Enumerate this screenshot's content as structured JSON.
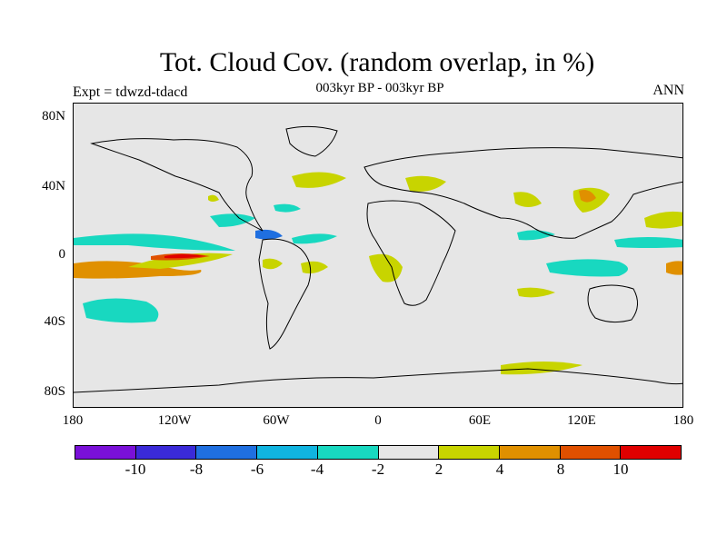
{
  "title": "Tot. Cloud Cov. (random overlap, in %)",
  "subtitle": "003kyr BP - 003kyr BP",
  "left_label": "Expt = tdwzd-tdacd",
  "right_label": "ANN",
  "y_ticks": [
    "80N",
    "40N",
    "0",
    "40S",
    "80S"
  ],
  "x_ticks": [
    "180",
    "120W",
    "60W",
    "0",
    "60E",
    "120E",
    "180"
  ],
  "colorbar": {
    "colors": [
      "#7a10d8",
      "#3a2ad8",
      "#1f6fe0",
      "#10b4e0",
      "#18d8c0",
      "#e6e6e6",
      "#c8d400",
      "#e09000",
      "#e05000",
      "#e00000"
    ],
    "labels": [
      "-10",
      "-8",
      "-6",
      "-4",
      "-2",
      "2",
      "4",
      "8",
      "10"
    ]
  },
  "colors": {
    "background": "#e6e6e6",
    "positive_light": "#c8d400",
    "positive_mid": "#e09000",
    "positive_high": "#e05000",
    "positive_max": "#e00000",
    "negative_light": "#18d8c0",
    "negative_mid": "#10b4e0",
    "negative_strong": "#1f6fe0",
    "negative_max": "#3a2ad8"
  }
}
